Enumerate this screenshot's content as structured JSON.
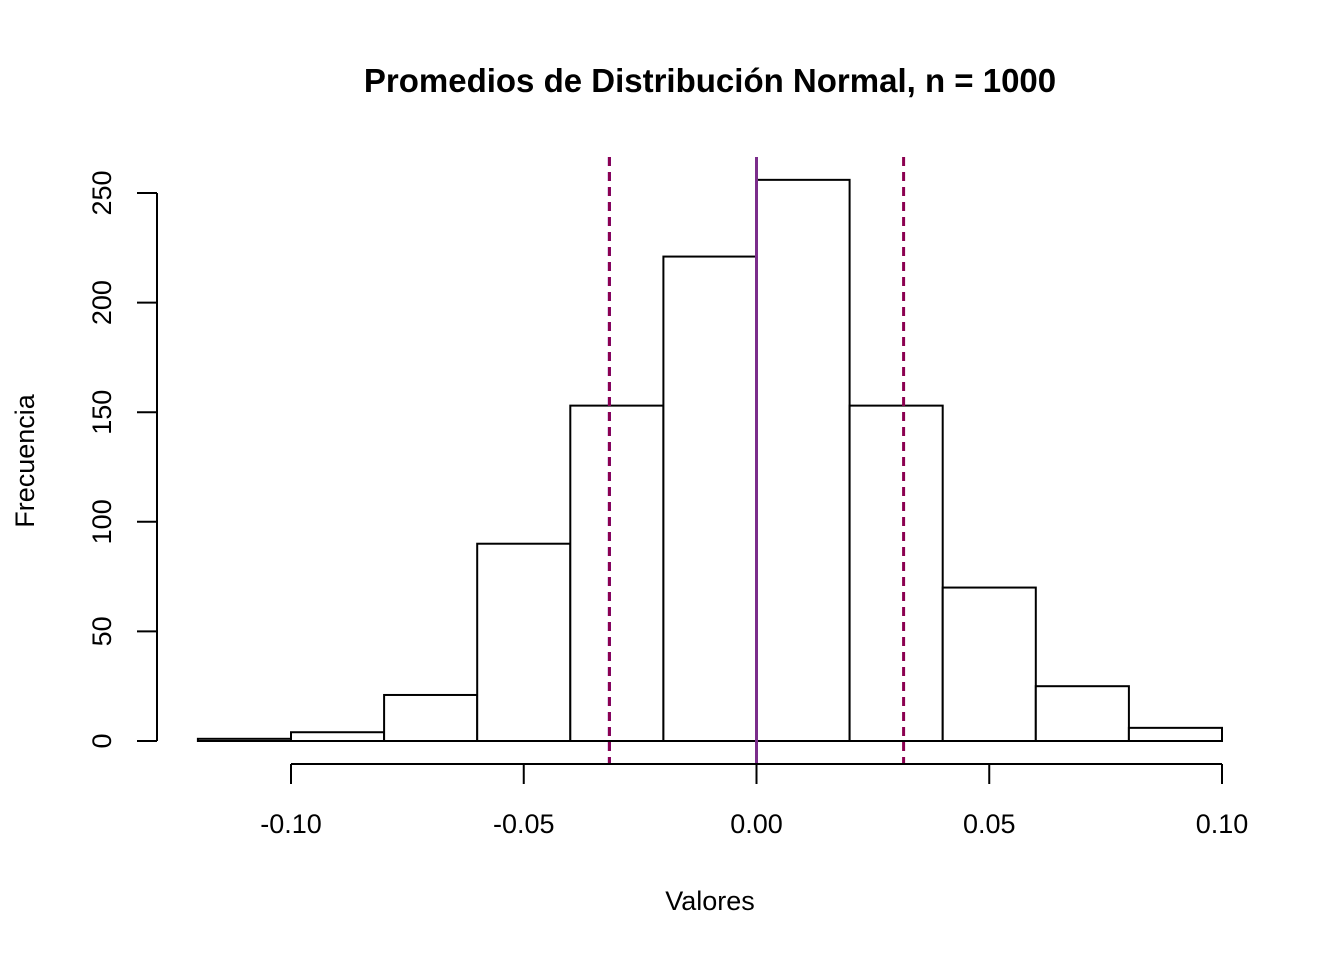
{
  "chart_data": {
    "type": "bar",
    "title": "Promedios de Distribución Normal, n = 1000",
    "xlabel": "Valores",
    "ylabel": "Frecuencia",
    "xlim": [
      -0.12,
      0.1
    ],
    "ylim": [
      0,
      250
    ],
    "x_ticks": [
      -0.1,
      -0.05,
      0.0,
      0.05,
      0.1
    ],
    "x_tick_labels": [
      "-0.10",
      "-0.05",
      "0.00",
      "0.05",
      "0.10"
    ],
    "y_ticks": [
      0,
      50,
      100,
      150,
      200,
      250
    ],
    "y_tick_labels": [
      "0",
      "50",
      "100",
      "150",
      "200",
      "250"
    ],
    "bin_edges": [
      -0.12,
      -0.1,
      -0.08,
      -0.06,
      -0.04,
      -0.02,
      0.0,
      0.02,
      0.04,
      0.06,
      0.08,
      0.1
    ],
    "counts": [
      1,
      4,
      21,
      90,
      153,
      221,
      256,
      153,
      70,
      25,
      6
    ],
    "reference_lines": [
      {
        "x": 0.0,
        "style": "solid",
        "color": "#CC0066"
      },
      {
        "x": 0.0,
        "style": "solid",
        "color": "#7B2D8B"
      },
      {
        "x": -0.0316,
        "style": "dashed",
        "color": "#0000FF"
      },
      {
        "x": -0.0316,
        "style": "dashed",
        "color": "#8B0050"
      },
      {
        "x": 0.0316,
        "style": "dashed",
        "color": "#8B0050"
      }
    ],
    "bar_fill": "#ffffff",
    "bar_stroke": "#000000",
    "grid": false
  }
}
